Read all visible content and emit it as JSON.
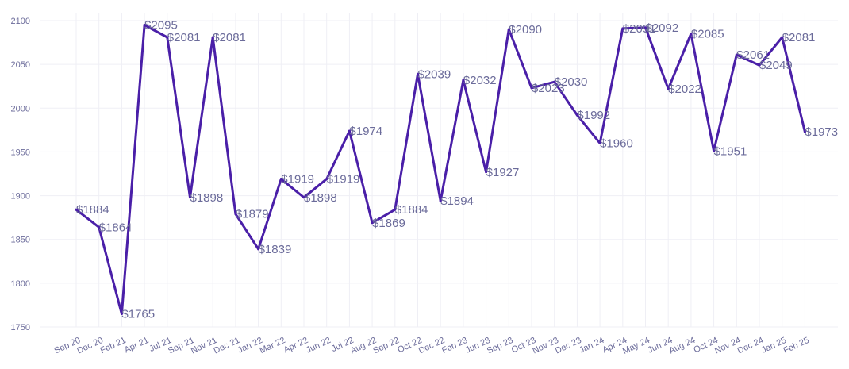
{
  "chart_data": {
    "type": "line",
    "categories": [
      "Sep 20",
      "Dec 20",
      "Feb 21",
      "Apr 21",
      "Jul 21",
      "Sep 21",
      "Nov 21",
      "Dec 21",
      "Jan 22",
      "Mar 22",
      "Apr 22",
      "Jun 22",
      "Jul 22",
      "Aug 22",
      "Sep 22",
      "Oct 22",
      "Dec 22",
      "Feb 23",
      "Jun 23",
      "Sep 23",
      "Oct 23",
      "Nov 23",
      "Dec 23",
      "Jan 24",
      "Apr 24",
      "May 24",
      "Jun 24",
      "Aug 24",
      "Oct 24",
      "Nov 24",
      "Dec 24",
      "Jan 25",
      "Feb 25"
    ],
    "values": [
      1884,
      1864,
      1765,
      2095,
      2081,
      1898,
      2081,
      1879,
      1839,
      1919,
      1898,
      1919,
      1974,
      1869,
      1884,
      2039,
      1894,
      2032,
      1927,
      2090,
      2023,
      2030,
      1992,
      1960,
      2091,
      2092,
      2022,
      2085,
      1951,
      2061,
      2049,
      2081,
      1973
    ],
    "data_labels": [
      "$1884",
      "$1864",
      "$1765",
      "$2095",
      "$2081",
      "$1898",
      "$2081",
      "$1879",
      "$1839",
      "$1919",
      "$1898",
      "$1919",
      "$1974",
      "$1869",
      "$1884",
      "$2039",
      "$1894",
      "$2032",
      "$1927",
      "$2090",
      "$2023",
      "$2030",
      "$1992",
      "$1960",
      "$2091",
      "$2092",
      "$2022",
      "$2085",
      "$1951",
      "$2061",
      "$2049",
      "$2081",
      "$1973"
    ],
    "y_ticks": [
      1750,
      1800,
      1850,
      1900,
      1950,
      2000,
      2050,
      2100
    ],
    "ylim": [
      1750,
      2100
    ],
    "title": "",
    "xlabel": "",
    "ylabel": "",
    "grid": true,
    "line_color": "#4a1fa8"
  }
}
